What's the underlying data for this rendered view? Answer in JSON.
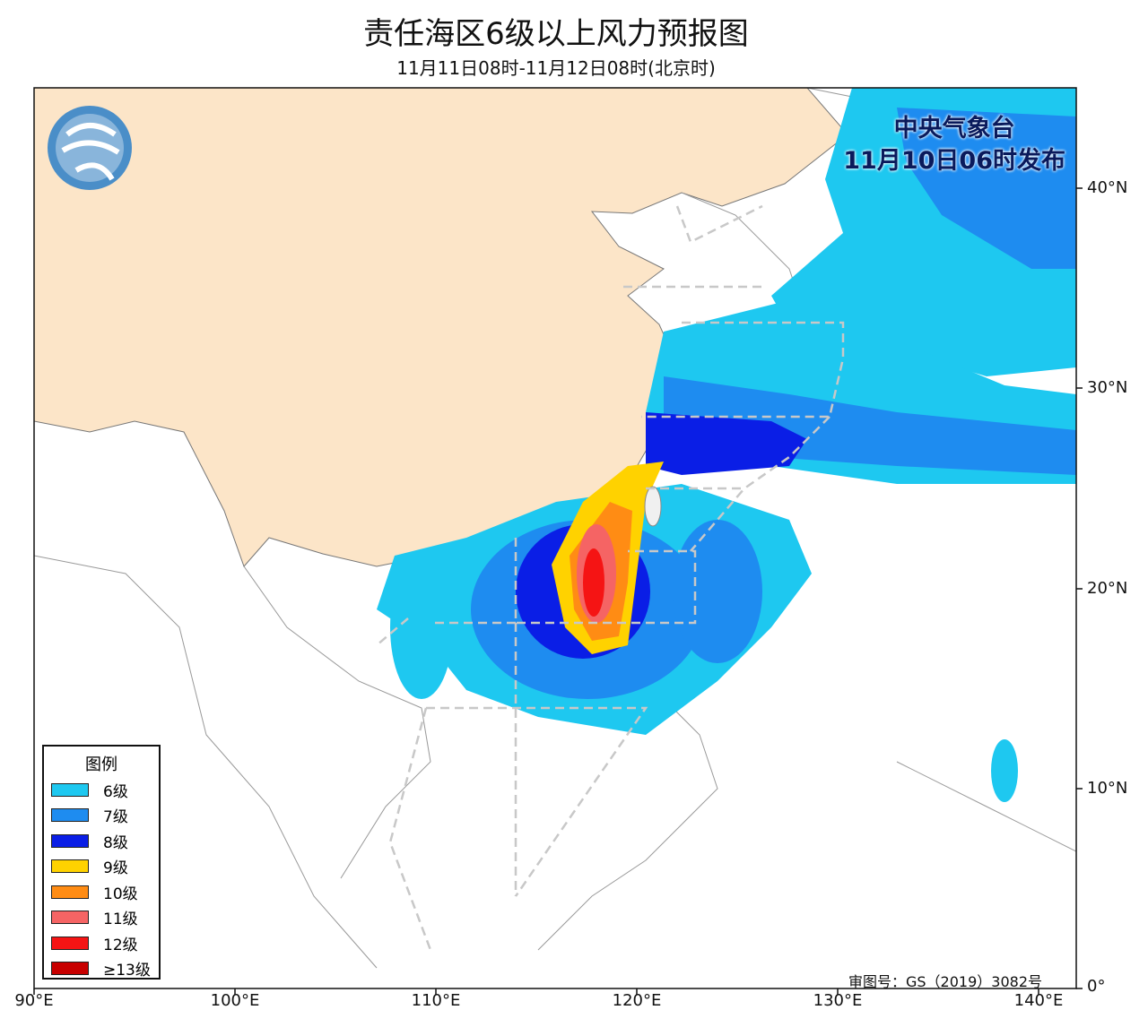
{
  "header": {
    "title": "责任海区6级以上风力预报图",
    "subtitle": "11月11日08时-11月12日08时(北京时)"
  },
  "issuer": {
    "agency": "中央气象台",
    "issued": "11月10日06时发布"
  },
  "approval": "审图号：GS（2019）3082号",
  "axes": {
    "lat_labels": [
      "40°N",
      "30°N",
      "20°N",
      "10°N",
      "0°"
    ],
    "lon_labels": [
      "90°E",
      "100°E",
      "110°E",
      "120°E",
      "130°E",
      "140°E"
    ]
  },
  "legend": {
    "title": "图例",
    "items": [
      {
        "label": "6级",
        "color": "#1ec8f0"
      },
      {
        "label": "7级",
        "color": "#1e8cf0"
      },
      {
        "label": "8级",
        "color": "#0a1ee6"
      },
      {
        "label": "9级",
        "color": "#ffd200"
      },
      {
        "label": "10级",
        "color": "#ff8c14"
      },
      {
        "label": "11级",
        "color": "#f56464"
      },
      {
        "label": "12级",
        "color": "#f51414"
      },
      {
        "label": "≥13级",
        "color": "#c80000"
      }
    ]
  },
  "colors": {
    "land_china": "#fce5c8",
    "border": "#888888",
    "sea_zone_line": "#c8c8c8"
  }
}
